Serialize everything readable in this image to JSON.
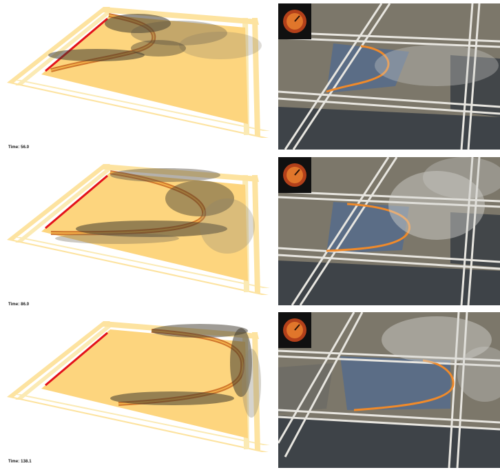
{
  "panels": [
    {
      "time_label": "Time: 56.0"
    },
    {
      "time_label": "Time: 86.0"
    },
    {
      "time_label": "Time: 138.1"
    }
  ],
  "colors": {
    "ground": "#fdd57e",
    "ground_edge": "#fbe7a9",
    "track": "#fff2c7",
    "ignition_line": "#e3121b",
    "fire_front": "#e0762b",
    "smoke_dark": "#3f3a2e",
    "photo_unburnt": "#7c776a",
    "photo_burnt": "#3e4348",
    "photo_road": "#e8e6e0"
  },
  "icons": [
    "gauge-icon"
  ]
}
